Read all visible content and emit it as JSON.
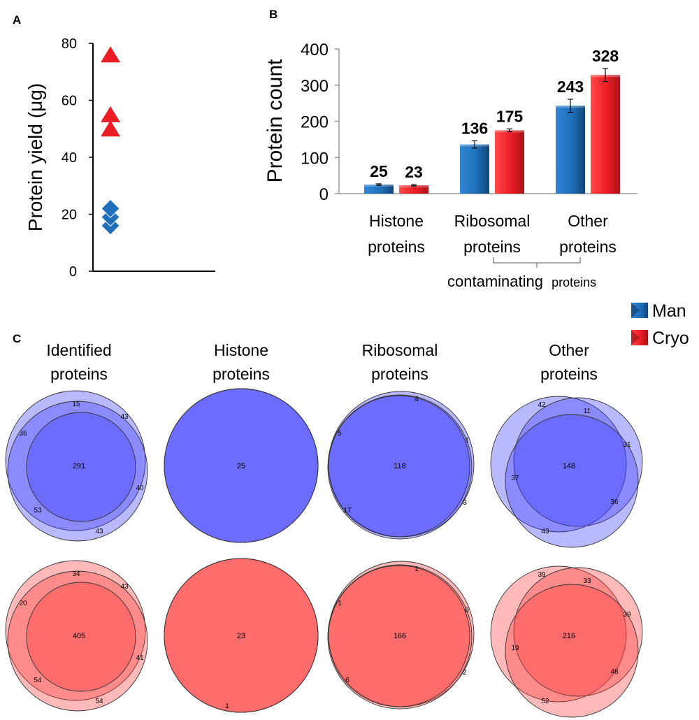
{
  "colors": {
    "man": "#1f6fba",
    "man_dark": "#14508a",
    "cryo": "#ec1c24",
    "cryo_dark": "#a8141a",
    "venn_blue": "#3333ff",
    "venn_red": "#ff3333"
  },
  "panel_labels": {
    "a": "A",
    "b": "B",
    "c": "C"
  },
  "chart_data": [
    {
      "panel": "A",
      "type": "scatter",
      "ylabel": "Protein yield (μg)",
      "ylim": [
        0,
        80
      ],
      "yticks": [
        "0",
        "20",
        "40",
        "60",
        "80"
      ],
      "series": [
        {
          "name": "Man",
          "marker": "diamond",
          "values": [
            16,
            19,
            22
          ]
        },
        {
          "name": "Cryo",
          "marker": "triangle",
          "values": [
            50,
            55,
            76
          ]
        }
      ]
    },
    {
      "panel": "B",
      "type": "bar",
      "ylabel": "Protein count",
      "ylim": [
        0,
        400
      ],
      "yticks": [
        "0",
        "100",
        "200",
        "300",
        "400"
      ],
      "categories": [
        {
          "line1": "Histone",
          "line2": "proteins"
        },
        {
          "line1": "Ribosomal",
          "line2": "proteins"
        },
        {
          "line1": "Other",
          "line2": "proteins"
        }
      ],
      "series": [
        {
          "name": "Man",
          "values": [
            25,
            136,
            243
          ],
          "labels": [
            "25",
            "136",
            "243"
          ],
          "errors": [
            2,
            10,
            18
          ]
        },
        {
          "name": "Cryo",
          "values": [
            23,
            175,
            328
          ],
          "labels": [
            "23",
            "175",
            "328"
          ],
          "errors": [
            2,
            4,
            18
          ]
        }
      ],
      "bracket_label_main": "contaminating",
      "bracket_label_small": "proteins",
      "legend": [
        "Man",
        "Cryo"
      ]
    },
    {
      "panel": "C",
      "type": "venn",
      "column_titles": [
        {
          "line1": "Identified",
          "line2": "proteins"
        },
        {
          "line1": "Histone",
          "line2": "proteins"
        },
        {
          "line1": "Ribosomal",
          "line2": "proteins"
        },
        {
          "line1": "Other",
          "line2": "proteins"
        }
      ],
      "rows": [
        {
          "group": "Man",
          "diagrams": [
            {
              "center": "291",
              "regions": [
                "15",
                "43",
                "36",
                "40",
                "53",
                "43"
              ]
            },
            {
              "center": "25",
              "regions": []
            },
            {
              "center": "118",
              "regions": [
                "4",
                "5",
                "1",
                "17",
                "3"
              ]
            },
            {
              "center": "148",
              "regions": [
                "42",
                "11",
                "31",
                "37",
                "36",
                "43"
              ]
            }
          ]
        },
        {
          "group": "Cryo",
          "diagrams": [
            {
              "center": "405",
              "regions": [
                "34",
                "43",
                "20",
                "41",
                "54",
                "54"
              ]
            },
            {
              "center": "23",
              "regions": [
                "1"
              ]
            },
            {
              "center": "166",
              "regions": [
                "1",
                "1",
                "0",
                "6",
                "2"
              ]
            },
            {
              "center": "216",
              "regions": [
                "39",
                "33",
                "39",
                "19",
                "48",
                "52"
              ]
            }
          ]
        }
      ]
    }
  ]
}
